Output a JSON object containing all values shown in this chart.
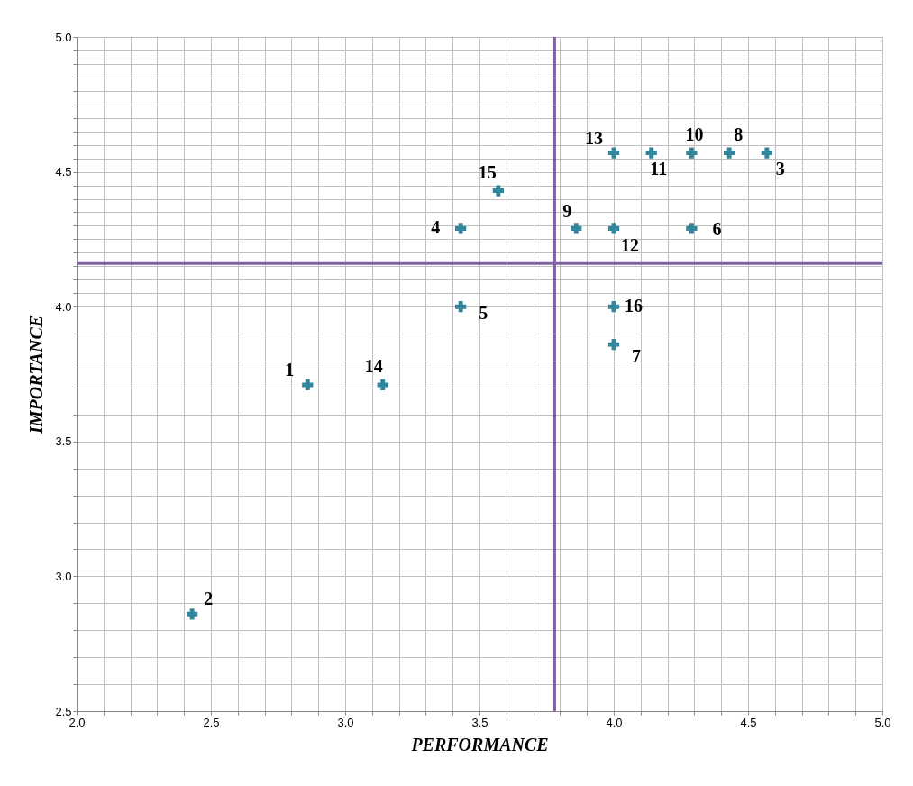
{
  "chart_data": {
    "type": "scatter",
    "xlabel": "PERFORMANCE",
    "ylabel": "IMPORTANCE",
    "x": [
      2.86,
      2.43,
      4.57,
      3.43,
      3.43,
      4.29,
      4.0,
      4.43,
      3.86,
      4.29,
      4.14,
      4.0,
      4.0,
      3.14,
      3.57,
      4.0
    ],
    "series": [
      {
        "color": "#31859c",
        "values": [
          3.71,
          2.86,
          4.57,
          4.29,
          4.0,
          4.29,
          3.86,
          4.57,
          4.29,
          4.57,
          4.57,
          4.29,
          4.57,
          3.71,
          4.43,
          4.0
        ]
      }
    ],
    "marker": "cross",
    "grid": true,
    "xlim": [
      2.0,
      5.0
    ],
    "ylim": [
      2.5,
      5.0
    ],
    "xticks": [
      {
        "value": 2.0,
        "label": "2.0"
      },
      {
        "value": 2.1,
        "label": null
      },
      {
        "value": 2.2,
        "label": null
      },
      {
        "value": 2.3,
        "label": null
      },
      {
        "value": 2.4,
        "label": null
      },
      {
        "value": 2.5,
        "label": "2.5"
      },
      {
        "value": 2.6,
        "label": null
      },
      {
        "value": 2.7,
        "label": null
      },
      {
        "value": 2.8,
        "label": null
      },
      {
        "value": 2.9,
        "label": null
      },
      {
        "value": 3.0,
        "label": "3.0"
      },
      {
        "value": 3.1,
        "label": null
      },
      {
        "value": 3.2,
        "label": null
      },
      {
        "value": 3.3,
        "label": null
      },
      {
        "value": 3.4,
        "label": null
      },
      {
        "value": 3.5,
        "label": "3.5"
      },
      {
        "value": 3.6,
        "label": null
      },
      {
        "value": 3.7,
        "label": null
      },
      {
        "value": 3.8,
        "label": null
      },
      {
        "value": 3.9,
        "label": null
      },
      {
        "value": 4.0,
        "label": "4.0"
      },
      {
        "value": 4.1,
        "label": null
      },
      {
        "value": 4.2,
        "label": null
      },
      {
        "value": 4.3,
        "label": null
      },
      {
        "value": 4.4,
        "label": null
      },
      {
        "value": 4.5,
        "label": "4.5"
      },
      {
        "value": 4.6,
        "label": null
      },
      {
        "value": 4.7,
        "label": null
      },
      {
        "value": 4.8,
        "label": null
      },
      {
        "value": 4.9,
        "label": null
      },
      {
        "value": 5.0,
        "label": "5.0"
      }
    ],
    "yticks": [
      {
        "value": 2.5,
        "label": "2.5"
      },
      {
        "value": 2.6,
        "label": null
      },
      {
        "value": 2.7,
        "label": null
      },
      {
        "value": 2.8,
        "label": null
      },
      {
        "value": 2.9,
        "label": null
      },
      {
        "value": 3.0,
        "label": "3.0"
      },
      {
        "value": 3.1,
        "label": null
      },
      {
        "value": 3.2,
        "label": null
      },
      {
        "value": 3.3,
        "label": null
      },
      {
        "value": 3.4,
        "label": null
      },
      {
        "value": 3.5,
        "label": "3.5"
      },
      {
        "value": 3.6,
        "label": null
      },
      {
        "value": 3.7,
        "label": null
      },
      {
        "value": 3.8,
        "label": null
      },
      {
        "value": 3.9,
        "label": null
      },
      {
        "value": 4.0,
        "label": "4.0"
      },
      {
        "value": 4.05,
        "label": null
      },
      {
        "value": 4.1,
        "label": null
      },
      {
        "value": 4.15,
        "label": null
      },
      {
        "value": 4.2,
        "label": null
      },
      {
        "value": 4.25,
        "label": null
      },
      {
        "value": 4.3,
        "label": null
      },
      {
        "value": 4.35,
        "label": null
      },
      {
        "value": 4.4,
        "label": null
      },
      {
        "value": 4.45,
        "label": null
      },
      {
        "value": 4.5,
        "label": "4.5"
      },
      {
        "value": 4.55,
        "label": null
      },
      {
        "value": 4.6,
        "label": null
      },
      {
        "value": 4.65,
        "label": null
      },
      {
        "value": 4.7,
        "label": null
      },
      {
        "value": 4.75,
        "label": null
      },
      {
        "value": 4.8,
        "label": null
      },
      {
        "value": 4.85,
        "label": null
      },
      {
        "value": 4.9,
        "label": null
      },
      {
        "value": 4.95,
        "label": null
      },
      {
        "value": 5.0,
        "label": "5.0"
      }
    ],
    "ref_lines": [
      {
        "axis": "x",
        "value": 3.78,
        "color": "#8064a2"
      },
      {
        "axis": "y",
        "value": 4.16,
        "color": "#8064a2"
      }
    ],
    "annotations": [
      {
        "text": "1",
        "x": 2.86,
        "y": 3.71
      },
      {
        "text": "2",
        "x": 2.43,
        "y": 2.86
      },
      {
        "text": "3",
        "x": 4.57,
        "y": 4.57
      },
      {
        "text": "4",
        "x": 3.43,
        "y": 4.29
      },
      {
        "text": "5",
        "x": 3.43,
        "y": 4.0
      },
      {
        "text": "6",
        "x": 4.29,
        "y": 4.29
      },
      {
        "text": "7",
        "x": 4.0,
        "y": 3.86
      },
      {
        "text": "8",
        "x": 4.43,
        "y": 4.57
      },
      {
        "text": "9",
        "x": 3.86,
        "y": 4.29
      },
      {
        "text": "10",
        "x": 4.29,
        "y": 4.57
      },
      {
        "text": "11",
        "x": 4.14,
        "y": 4.57
      },
      {
        "text": "12",
        "x": 4.0,
        "y": 4.29
      },
      {
        "text": "13",
        "x": 4.0,
        "y": 4.57
      },
      {
        "text": "14",
        "x": 3.14,
        "y": 3.71
      },
      {
        "text": "15",
        "x": 3.57,
        "y": 4.43
      },
      {
        "text": "16",
        "x": 4.0,
        "y": 4.0
      }
    ]
  }
}
